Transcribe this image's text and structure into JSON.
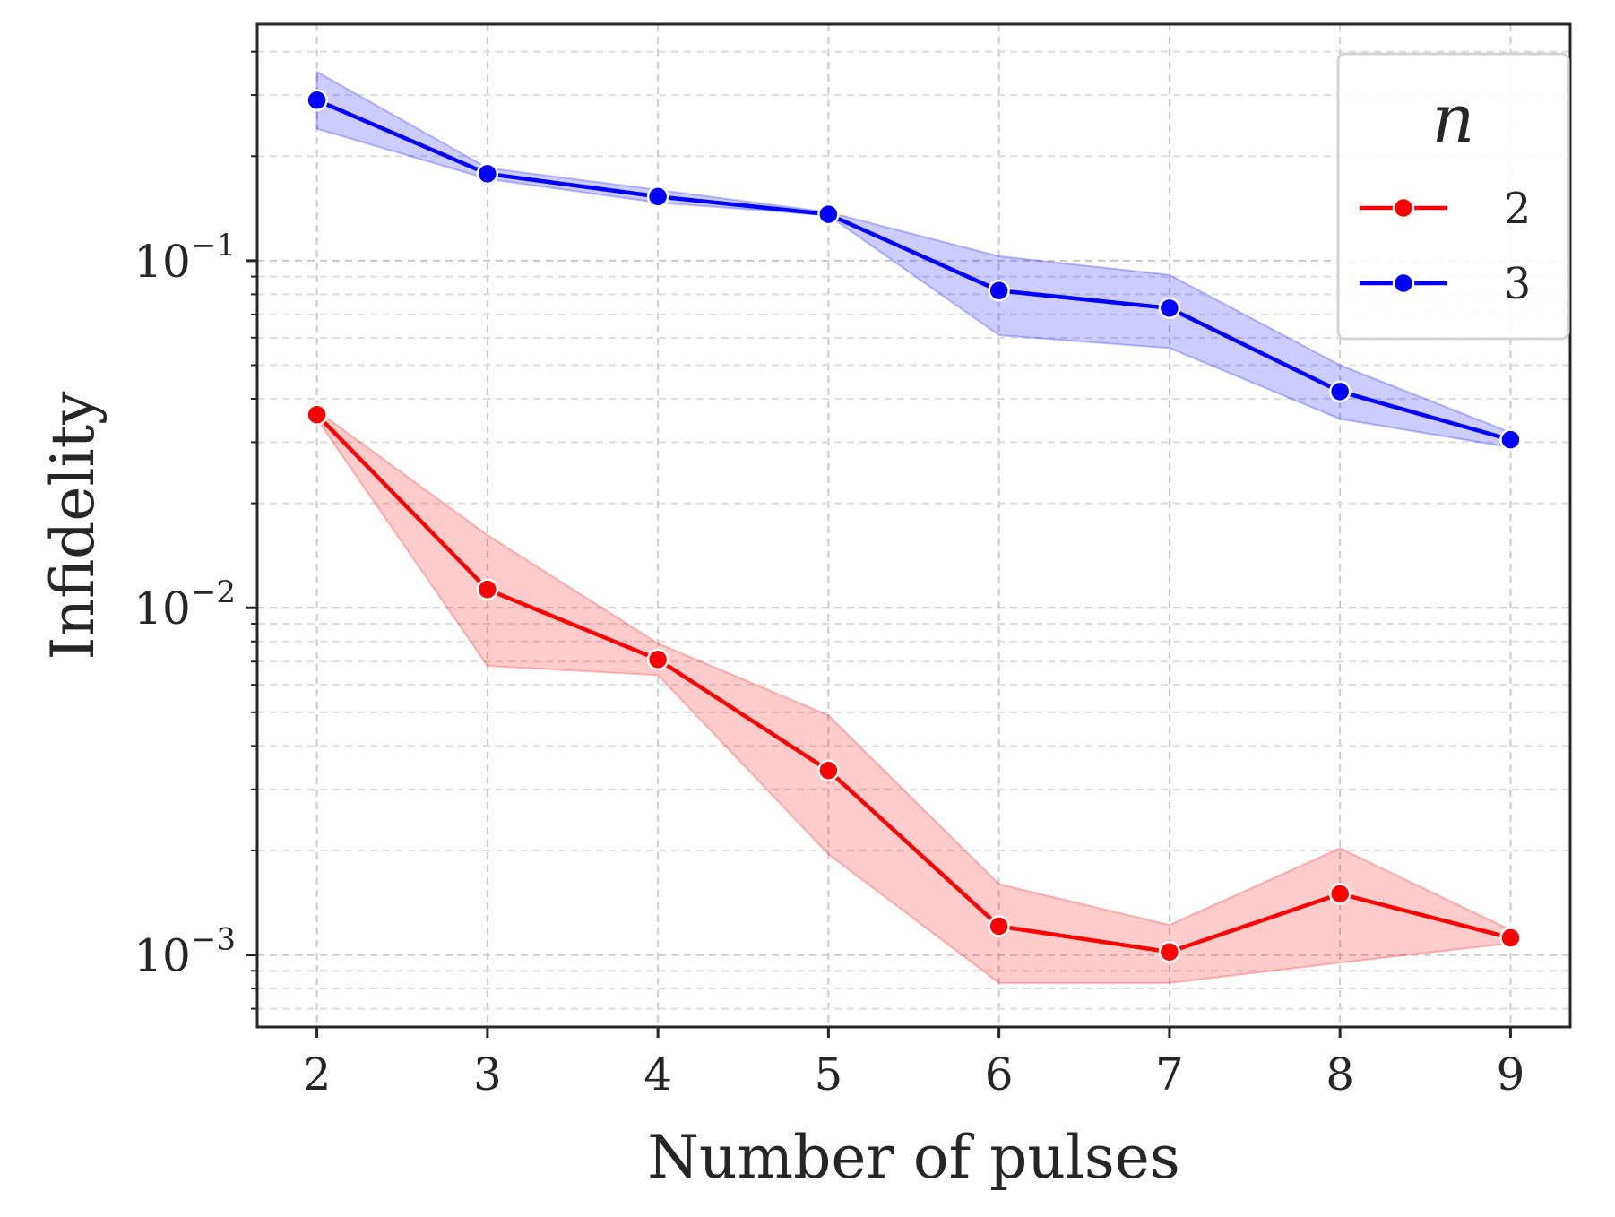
{
  "chart_data": {
    "type": "line",
    "title": "",
    "xlabel": "Number of pulses",
    "ylabel": "Infidelity",
    "yscale": "log",
    "x": [
      2,
      3,
      4,
      5,
      6,
      7,
      8,
      9
    ],
    "xlim": [
      1.65,
      9.35
    ],
    "ylim": [
      0.00062,
      0.48
    ],
    "xticks": [
      "2",
      "3",
      "4",
      "5",
      "6",
      "7",
      "8",
      "9"
    ],
    "yticks": [
      {
        "value": 0.1,
        "base": "10",
        "exp": "−1"
      },
      {
        "value": 0.01,
        "base": "10",
        "exp": "−2"
      },
      {
        "value": 0.001,
        "base": "10",
        "exp": "−3"
      }
    ],
    "grid": true,
    "legend": {
      "title": "n",
      "position": "top-right"
    },
    "series": [
      {
        "name": "2",
        "color": "#ff0000",
        "values": [
          0.036,
          0.0113,
          0.0071,
          0.0034,
          0.00121,
          0.00102,
          0.0015,
          0.00112
        ],
        "lower": [
          0.035,
          0.0068,
          0.0064,
          0.00195,
          0.00083,
          0.00083,
          0.00095,
          0.00108
        ],
        "upper": [
          0.037,
          0.0162,
          0.0079,
          0.0049,
          0.0016,
          0.00122,
          0.00203,
          0.00118
        ]
      },
      {
        "name": "3",
        "color": "#0000ff",
        "values": [
          0.29,
          0.178,
          0.153,
          0.136,
          0.082,
          0.073,
          0.042,
          0.0305
        ],
        "lower": [
          0.24,
          0.172,
          0.147,
          0.135,
          0.061,
          0.056,
          0.035,
          0.029
        ],
        "upper": [
          0.35,
          0.185,
          0.16,
          0.138,
          0.103,
          0.091,
          0.05,
          0.032
        ]
      }
    ]
  }
}
